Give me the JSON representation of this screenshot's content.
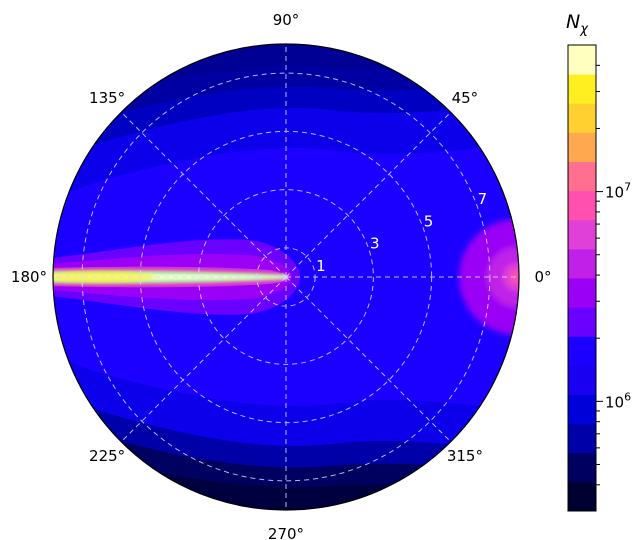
{
  "chart_data": {
    "type": "polar-contour",
    "title": "",
    "theta_ticks": [
      {
        "angle": 0,
        "label": "0°"
      },
      {
        "angle": 45,
        "label": "45°"
      },
      {
        "angle": 90,
        "label": "90°"
      },
      {
        "angle": 135,
        "label": "135°"
      },
      {
        "angle": 180,
        "label": "180°"
      },
      {
        "angle": 225,
        "label": "225°"
      },
      {
        "angle": 270,
        "label": "270°"
      },
      {
        "angle": 315,
        "label": "315°"
      }
    ],
    "r_max": 8,
    "r_ticks": [
      {
        "value": 1,
        "label": "1"
      },
      {
        "value": 3,
        "label": "3"
      },
      {
        "value": 5,
        "label": "5"
      },
      {
        "value": 7,
        "label": "7"
      }
    ],
    "grid": true,
    "features": {
      "jet_toward_theta_deg": 180,
      "hotspot_at": {
        "r": 8,
        "theta_deg": 0
      }
    },
    "colorbar": {
      "title_base": "N",
      "title_sub": "χ",
      "scale": "log",
      "vmin": 300000,
      "vmax": 50000000,
      "labeled_ticks": [
        {
          "value": 1000000,
          "base": "10",
          "exp": "6"
        },
        {
          "value": 10000000,
          "base": "10",
          "exp": "7"
        }
      ],
      "minor_ticks": [
        400000,
        500000,
        600000,
        700000,
        800000,
        900000,
        2000000,
        3000000,
        4000000,
        5000000,
        6000000,
        7000000,
        8000000,
        9000000,
        20000000,
        30000000,
        40000000
      ],
      "levels": [
        "#000030",
        "#000060",
        "#0000a8",
        "#0000d8",
        "#1a00f0",
        "#1c00ff",
        "#6a00ff",
        "#9a00f5",
        "#c020e8",
        "#e040d8",
        "#ff50b0",
        "#ff7090",
        "#ffa850",
        "#ffd030",
        "#ffee20",
        "#ffffc0"
      ]
    }
  }
}
